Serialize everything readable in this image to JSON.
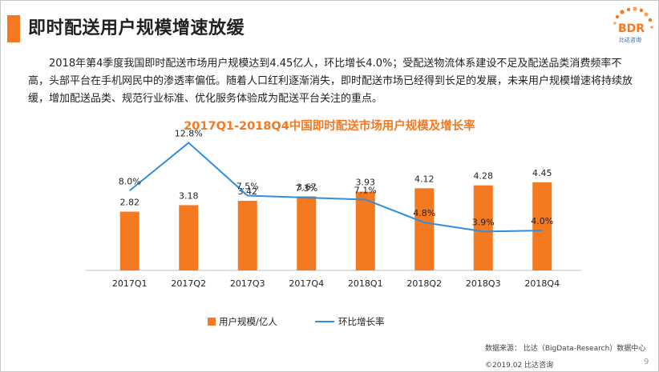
{
  "header": {
    "title": "即时配送用户规模增速放缓",
    "logo_text": "BDR",
    "logo_sub": "比达咨询"
  },
  "intro": "2018年第4季度我国即时配送市场用户规模达到4.45亿人，环比增长4.0%；受配送物流体系建设不足及配送品类消费频率不高，头部平台在手机网民中的渗透率偏低。随着人口红利逐渐消失，即时配送市场已经得到长足的发展，未来用户规模增速将持续放缓，增加配送品类、规范行业标准、优化服务体验成为配送平台关注的重点。",
  "chart_data": {
    "type": "bar",
    "title": "2017Q1-2018Q4中国即时配送市场用户规模及增长率",
    "categories": [
      "2017Q1",
      "2017Q2",
      "2017Q3",
      "2017Q4",
      "2018Q1",
      "2018Q2",
      "2018Q3",
      "2018Q4"
    ],
    "series": [
      {
        "name": "用户规模/亿人",
        "kind": "bar",
        "values": [
          2.82,
          3.18,
          3.42,
          3.67,
          3.93,
          4.12,
          4.28,
          4.45
        ],
        "labels": [
          "2.82",
          "3.18",
          "3.42",
          "3.67",
          "3.93",
          "4.12",
          "4.28",
          "4.45"
        ],
        "color": "#f47920"
      },
      {
        "name": "环比增长率",
        "kind": "line",
        "values": [
          8.0,
          12.8,
          7.5,
          7.3,
          7.1,
          4.8,
          3.9,
          4.0
        ],
        "labels": [
          "8.0%",
          "12.8%",
          "7.5%",
          "7.3%",
          "7.1%",
          "4.8%",
          "3.9%",
          "4.0%"
        ],
        "color": "#2e8ee0"
      }
    ],
    "ylim_bar": [
      0,
      5
    ],
    "ylim_line": [
      0,
      15
    ],
    "grid": false,
    "legend_position": "bottom"
  },
  "footer": {
    "source": "数据来源：  比达（BigData-Research）数据中心",
    "copyright": "©2019.02  比达咨询",
    "page": "9"
  },
  "colors": {
    "accent": "#f47920",
    "line": "#2e8ee0",
    "axis": "#bfbfbf"
  }
}
